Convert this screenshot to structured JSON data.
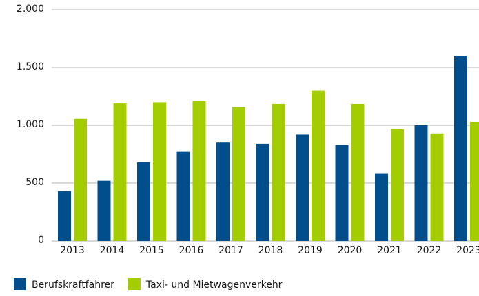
{
  "chart_data": {
    "type": "bar",
    "categories": [
      "2013",
      "2014",
      "2015",
      "2016",
      "2017",
      "2018",
      "2019",
      "2020",
      "2021",
      "2022",
      "2023"
    ],
    "series": [
      {
        "name": "Berufskraftfahrer",
        "color": "#004f8c",
        "values": [
          430,
          520,
          680,
          770,
          850,
          840,
          920,
          830,
          580,
          1000,
          1600
        ]
      },
      {
        "name": "Taxi- und Mietwagenverkehr",
        "color": "#a3cd00",
        "values": [
          1055,
          1190,
          1200,
          1210,
          1155,
          1185,
          1300,
          1185,
          965,
          930,
          1030
        ]
      }
    ],
    "ylim": [
      0,
      2000
    ],
    "yticks": [
      0,
      500,
      {
        "value": 1000,
        "label": "1.000"
      },
      {
        "value": 1500,
        "label": "1.500"
      },
      {
        "value": 2000,
        "label": "2.000"
      }
    ],
    "grid": true,
    "legend": "bottom"
  }
}
